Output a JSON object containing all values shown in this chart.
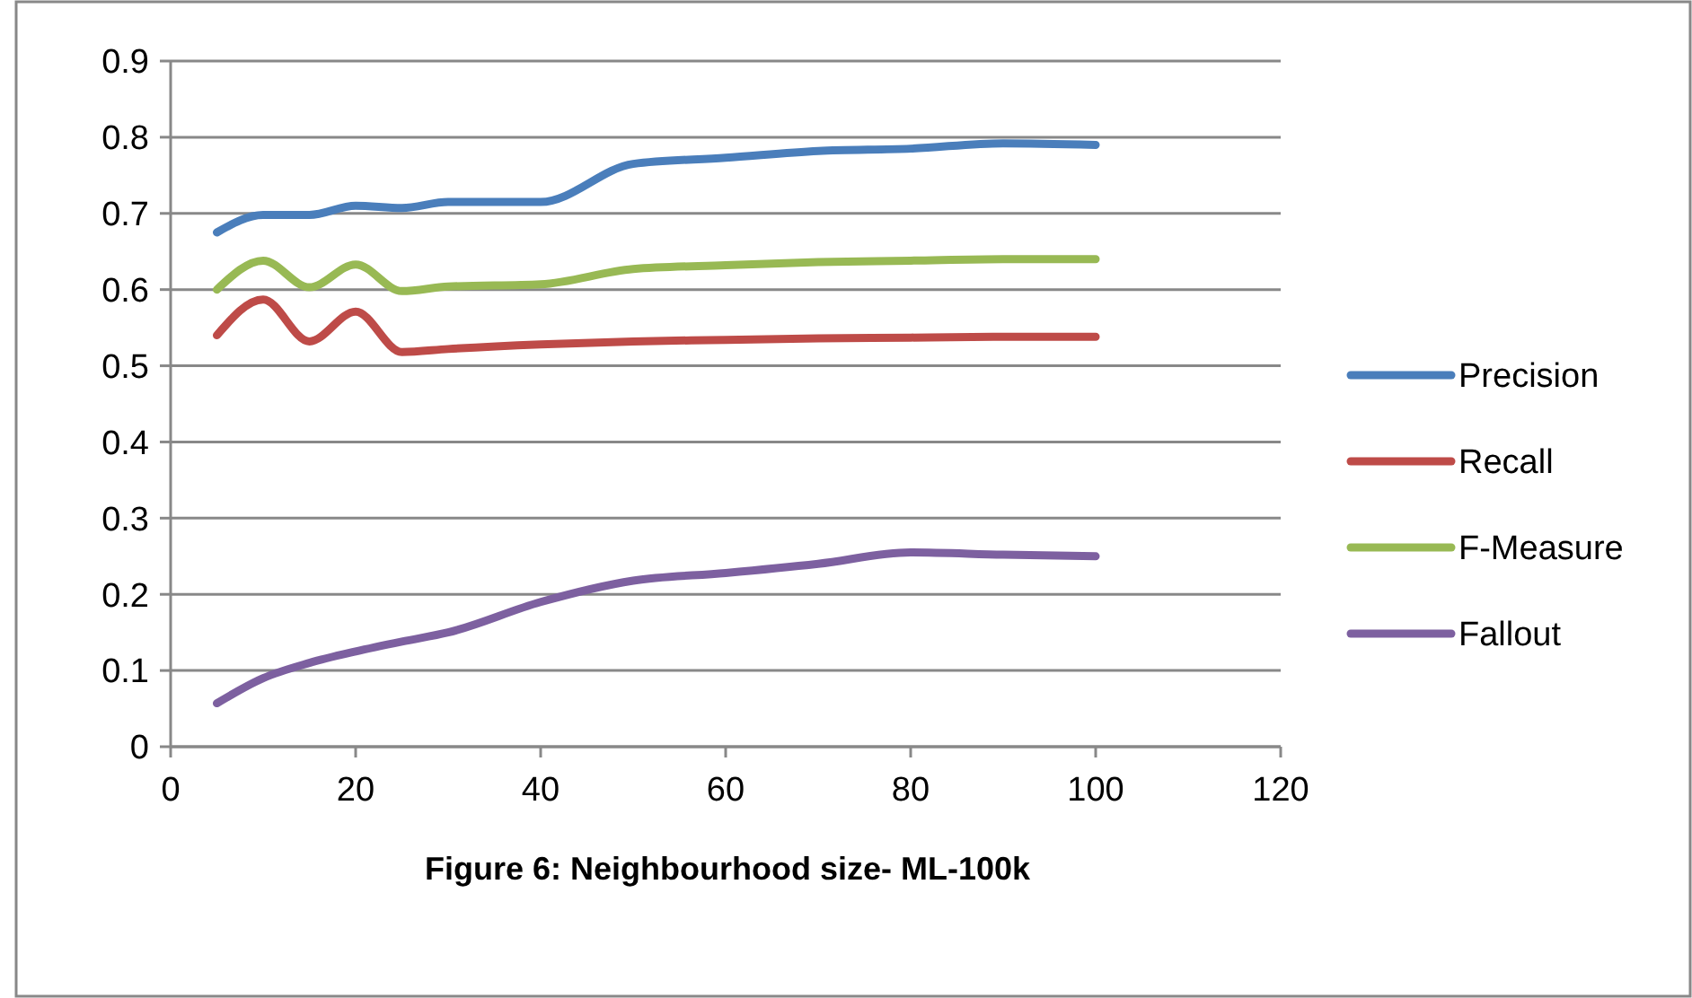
{
  "chart_data": {
    "type": "line",
    "annotations": [
      "Figure 6: Neighbourhood size- ML-100k"
    ],
    "x": [
      5,
      10,
      15,
      20,
      25,
      30,
      40,
      50,
      60,
      70,
      80,
      90,
      100
    ],
    "xlim": [
      0,
      120
    ],
    "xticks": [
      0,
      20,
      40,
      60,
      80,
      100,
      120
    ],
    "ylim": [
      0,
      0.9
    ],
    "yticks": [
      0,
      0.1,
      0.2,
      0.3,
      0.4,
      0.5,
      0.6,
      0.7,
      0.8,
      0.9
    ],
    "grid": "y",
    "legend": "right",
    "marker": "none",
    "line_style": "solid",
    "series": [
      {
        "name": "Precision",
        "color": "#4a7ebb",
        "values": [
          0.675,
          0.698,
          0.698,
          0.71,
          0.707,
          0.715,
          0.715,
          0.765,
          0.773,
          0.782,
          0.785,
          0.792,
          0.79
        ]
      },
      {
        "name": "Recall",
        "color": "#be4b48",
        "values": [
          0.54,
          0.587,
          0.532,
          0.571,
          0.518,
          0.522,
          0.528,
          0.532,
          0.534,
          0.536,
          0.537,
          0.538,
          0.538
        ]
      },
      {
        "name": "F-Measure",
        "color": "#98b954",
        "values": [
          0.6,
          0.638,
          0.603,
          0.633,
          0.598,
          0.604,
          0.607,
          0.627,
          0.632,
          0.636,
          0.638,
          0.64,
          0.64
        ]
      },
      {
        "name": "Fallout",
        "color": "#7d60a0",
        "values": [
          0.057,
          0.09,
          0.11,
          0.125,
          0.138,
          0.15,
          0.19,
          0.218,
          0.228,
          0.24,
          0.255,
          0.252,
          0.25
        ]
      }
    ]
  }
}
